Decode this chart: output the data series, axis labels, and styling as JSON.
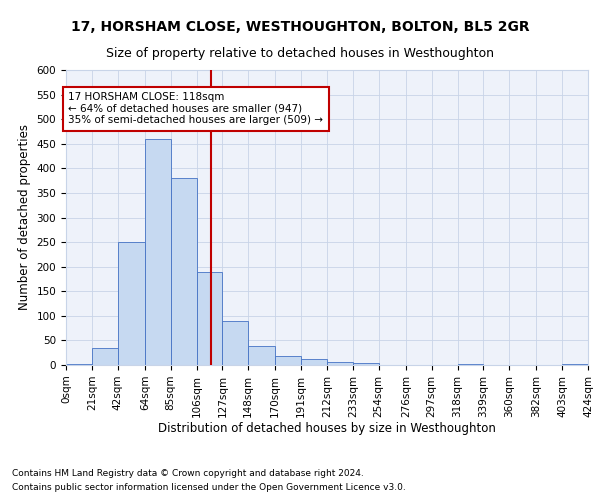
{
  "title": "17, HORSHAM CLOSE, WESTHOUGHTON, BOLTON, BL5 2GR",
  "subtitle": "Size of property relative to detached houses in Westhoughton",
  "xlabel": "Distribution of detached houses by size in Westhoughton",
  "ylabel": "Number of detached properties",
  "footnote1": "Contains HM Land Registry data © Crown copyright and database right 2024.",
  "footnote2": "Contains public sector information licensed under the Open Government Licence v3.0.",
  "annotation_title": "17 HORSHAM CLOSE: 118sqm",
  "annotation_line1": "← 64% of detached houses are smaller (947)",
  "annotation_line2": "35% of semi-detached houses are larger (509) →",
  "property_size": 118,
  "bar_color": "#c6d9f1",
  "bar_edge_color": "#4472c4",
  "vline_color": "#c00000",
  "annotation_box_color": "#c00000",
  "bins": [
    0,
    21,
    42,
    64,
    85,
    106,
    127,
    148,
    170,
    191,
    212,
    233,
    254,
    276,
    297,
    318,
    339,
    360,
    382,
    403,
    424
  ],
  "bar_heights": [
    2,
    35,
    250,
    460,
    380,
    190,
    90,
    38,
    18,
    12,
    6,
    5,
    1,
    0,
    0,
    2,
    0,
    0,
    0,
    2
  ],
  "ylim": [
    0,
    580
  ],
  "yticks": [
    0,
    50,
    100,
    150,
    200,
    250,
    300,
    350,
    400,
    450,
    500,
    550,
    600
  ],
  "background_color": "#eef2fa",
  "grid_color": "#c8d4e8",
  "title_fontsize": 10,
  "subtitle_fontsize": 9,
  "axis_label_fontsize": 8.5,
  "tick_fontsize": 7.5,
  "footnote_fontsize": 6.5
}
